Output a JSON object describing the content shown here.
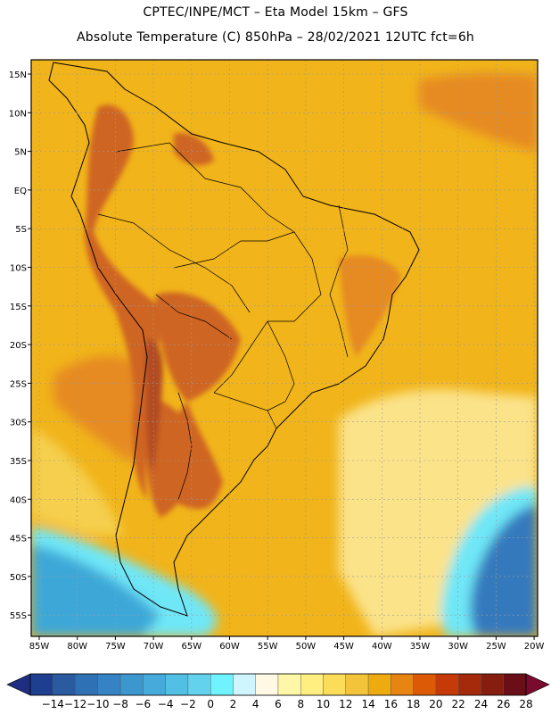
{
  "header": {
    "line1": "CPTEC/INPE/MCT –  Eta Model 15km – GFS",
    "line2": "Absolute Temperature (C) 850hPa – 28/02/2021 12UTC fct=6h"
  },
  "axes": {
    "lat_labels": [
      "15N",
      "10N",
      "5N",
      "EQ",
      "5S",
      "10S",
      "15S",
      "20S",
      "25S",
      "30S",
      "35S",
      "40S",
      "45S",
      "50S",
      "55S"
    ],
    "lon_labels": [
      "85W",
      "80W",
      "75W",
      "70W",
      "65W",
      "60W",
      "55W",
      "50W",
      "45W",
      "40W",
      "35W",
      "30W",
      "25W",
      "20W"
    ]
  },
  "colorbar": {
    "labels": [
      "-14",
      "-12",
      "-10",
      "-8",
      "-6",
      "-4",
      "-2",
      "0",
      "2",
      "4",
      "6",
      "8",
      "10",
      "12",
      "14",
      "16",
      "18",
      "20",
      "22",
      "24",
      "26",
      "28"
    ],
    "colors": [
      "#1e3f8f",
      "#2a5aa0",
      "#2f71b5",
      "#3583c4",
      "#3c97cf",
      "#46aadb",
      "#52bfe4",
      "#63d2ec",
      "#6ff4ff",
      "#cff5ff",
      "#fff8e5",
      "#fff7a8",
      "#ffee80",
      "#fbdd5a",
      "#f3c43a",
      "#eeab10",
      "#e88512",
      "#dc5a06",
      "#c63a08",
      "#a52a0c",
      "#861e10",
      "#6a0f18"
    ],
    "low_arrow_color": "#1e2d80",
    "high_arrow_color": "#7a0a2e"
  },
  "palette": {
    "ocean_base": "#f1b41a",
    "warm": "#e68a22",
    "hot": "#cf6524",
    "very_hot": "#b24c22",
    "cool": "#f5cf4e",
    "pale": "#fbe38a",
    "cyan": "#6fe7f7",
    "blue": "#3ea8d8",
    "deep_blue": "#3479bd"
  },
  "icons": {
    "map_frame": "map-frame-icon",
    "coastline": "coastline-icon"
  }
}
